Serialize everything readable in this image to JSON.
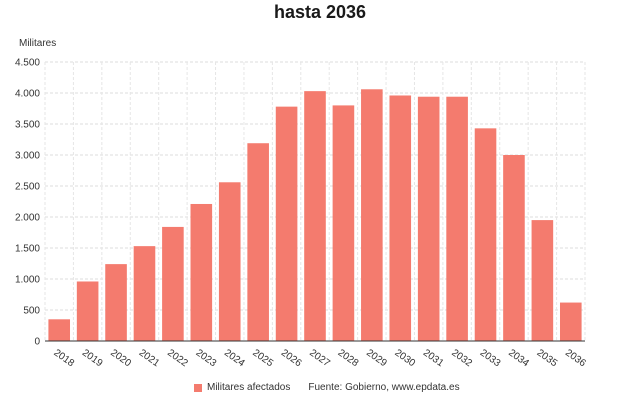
{
  "chart_title": "hasta 2036",
  "chart_data": {
    "type": "bar",
    "title": "hasta 2036",
    "ylabel": "Militares",
    "xlabel": "",
    "categories": [
      "2018",
      "2019",
      "2020",
      "2021",
      "2022",
      "2023",
      "2024",
      "2025",
      "2026",
      "2027",
      "2028",
      "2029",
      "2030",
      "2031",
      "2032",
      "2033",
      "2034",
      "2035",
      "2036"
    ],
    "series": [
      {
        "name": "Militares afectados",
        "values": [
          350,
          960,
          1240,
          1530,
          1840,
          2210,
          2560,
          3190,
          3780,
          4030,
          3800,
          4060,
          3960,
          3940,
          3940,
          3430,
          3000,
          1950,
          620
        ]
      }
    ],
    "ylim": [
      0,
      4500
    ],
    "yticks": [
      0,
      500,
      1000,
      1500,
      2000,
      2500,
      3000,
      3500,
      4000,
      4500
    ],
    "ytick_labels": [
      "0",
      "500",
      "1.000",
      "1.500",
      "2.000",
      "2.500",
      "3.000",
      "3.500",
      "4.000",
      "4.500"
    ],
    "grid": true,
    "legend_position": "bottom",
    "bar_color": "#F47B6E"
  },
  "legend": {
    "label": "Militares afectados",
    "source": "Fuente: Gobierno, www.epdata.es"
  }
}
